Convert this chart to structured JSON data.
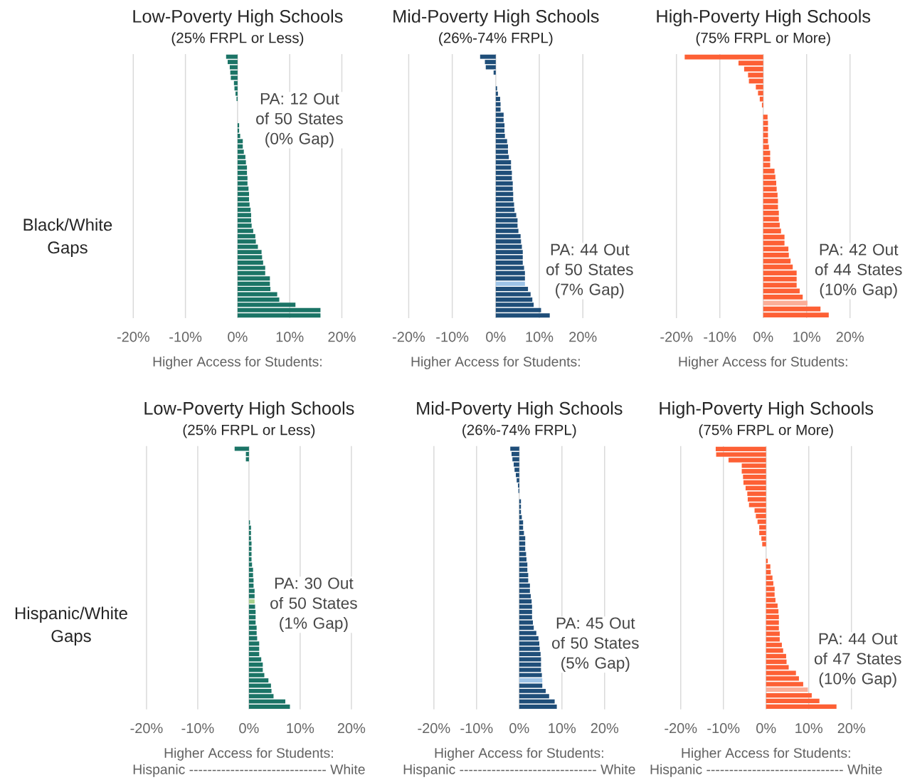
{
  "chart_data": [
    {
      "type": "bar",
      "orientation": "horizontal",
      "title": "Low-Poverty High Schools",
      "subtitle": "(25% FRPL or Less)",
      "xlabel": "Higher Access for Students:",
      "ylabel": "Black/White Gaps",
      "annotations": [
        "PA: 12 Out of 50 States (0% Gap)"
      ],
      "grid": "x",
      "xlim": [
        -20,
        20
      ],
      "xticks": [
        {
          "value": -20,
          "label": "-20%"
        },
        {
          "value": -10,
          "label": "-10%"
        },
        {
          "value": 0,
          "label": "0%"
        },
        {
          "value": 10,
          "label": "10%"
        },
        {
          "value": 20,
          "label": "20%"
        }
      ],
      "categories": [
        null,
        null,
        null,
        null,
        null,
        null,
        null,
        null,
        null,
        null,
        null,
        null,
        null,
        null,
        null,
        null,
        null,
        null,
        null,
        null,
        null,
        null,
        null,
        null,
        null,
        null,
        null,
        null,
        null,
        null,
        null,
        null,
        null,
        null,
        null,
        null,
        null,
        null,
        null,
        null,
        null,
        null,
        null,
        null,
        null,
        null,
        null,
        null,
        null,
        null
      ],
      "values": [
        -2.2,
        -1.9,
        -1.5,
        -1.4,
        -1.3,
        -0.7,
        -0.6,
        -0.4,
        -0.2,
        0,
        0,
        0,
        0,
        0.3,
        0.3,
        0.5,
        1.0,
        1.0,
        1.2,
        1.5,
        1.6,
        1.8,
        1.8,
        1.9,
        1.9,
        2.1,
        2.2,
        2.2,
        2.3,
        2.5,
        2.6,
        2.6,
        2.7,
        3.0,
        3.4,
        3.5,
        3.9,
        4.6,
        4.7,
        4.9,
        5.3,
        5.3,
        6.2,
        6.2,
        6.3,
        7.6,
        8.0,
        11.1,
        15.9,
        15.9
      ],
      "color": "#1b7466"
    },
    {
      "type": "bar",
      "orientation": "horizontal",
      "title": "Mid-Poverty High Schools",
      "subtitle": "(26%-74% FRPL)",
      "xlabel": "Higher Access for Students:",
      "annotations": [
        "PA: 44 Out of 50 States (7% Gap)"
      ],
      "grid": "x",
      "xlim": [
        -20,
        20
      ],
      "xticks": [
        {
          "value": -20,
          "label": "-20%"
        },
        {
          "value": -10,
          "label": "-10%"
        },
        {
          "value": 0,
          "label": "0%"
        },
        {
          "value": 10,
          "label": "10%"
        },
        {
          "value": 20,
          "label": "20%"
        }
      ],
      "categories": [
        null,
        null,
        null,
        null,
        null,
        null,
        null,
        null,
        null,
        null,
        null,
        null,
        null,
        null,
        null,
        null,
        null,
        null,
        null,
        null,
        null,
        null,
        null,
        null,
        null,
        null,
        null,
        null,
        null,
        null,
        null,
        null,
        null,
        null,
        null,
        null,
        null,
        null,
        null,
        null,
        null,
        null,
        null,
        null,
        null,
        null,
        null,
        null,
        null,
        null
      ],
      "values": [
        -3.6,
        -2.5,
        -2.3,
        -0.5,
        0,
        0,
        0.3,
        0.5,
        1.0,
        1.1,
        1.1,
        1.8,
        1.8,
        2.0,
        2.0,
        2.1,
        2.6,
        2.8,
        2.8,
        3.0,
        3.5,
        3.5,
        3.7,
        3.7,
        3.9,
        3.9,
        4.0,
        4.0,
        4.2,
        4.3,
        4.7,
        5.0,
        5.0,
        5.2,
        5.7,
        5.8,
        6.0,
        6.2,
        6.2,
        6.2,
        6.5,
        6.7,
        6.7,
        6.7,
        7.4,
        8.0,
        8.4,
        8.7,
        10.4,
        12.4
      ],
      "colors": [
        "#1f4e79",
        "#1f4e79",
        "#1f4e79",
        "#1f4e79",
        "#1f4e79",
        "#1f4e79",
        "#1f4e79",
        "#1f4e79",
        "#1f4e79",
        "#1f4e79",
        "#1f4e79",
        "#1f4e79",
        "#1f4e79",
        "#1f4e79",
        "#1f4e79",
        "#1f4e79",
        "#1f4e79",
        "#1f4e79",
        "#1f4e79",
        "#1f4e79",
        "#1f4e79",
        "#1f4e79",
        "#1f4e79",
        "#1f4e79",
        "#1f4e79",
        "#1f4e79",
        "#1f4e79",
        "#1f4e79",
        "#1f4e79",
        "#1f4e79",
        "#1f4e79",
        "#1f4e79",
        "#1f4e79",
        "#1f4e79",
        "#1f4e79",
        "#1f4e79",
        "#1f4e79",
        "#1f4e79",
        "#1f4e79",
        "#1f4e79",
        "#1f4e79",
        "#1f4e79",
        "#1f4e79",
        "#9dc3e6",
        "#1f4e79",
        "#1f4e79",
        "#1f4e79",
        "#1f4e79",
        "#1f4e79",
        "#1f4e79"
      ]
    },
    {
      "type": "bar",
      "orientation": "horizontal",
      "title": "High-Poverty High Schools",
      "subtitle": "(75% FRPL or More)",
      "xlabel": "Higher Access for Students:",
      "annotations": [
        "PA: 42 Out of 44 States (10% Gap)"
      ],
      "grid": "x",
      "xlim": [
        -20,
        20
      ],
      "xticks": [
        {
          "value": -20,
          "label": "-20%"
        },
        {
          "value": -10,
          "label": "-10%"
        },
        {
          "value": 0,
          "label": "0%"
        },
        {
          "value": 10,
          "label": "10%"
        },
        {
          "value": 20,
          "label": "20%"
        }
      ],
      "categories": [
        null,
        null,
        null,
        null,
        null,
        null,
        null,
        null,
        null,
        null,
        null,
        null,
        null,
        null,
        null,
        null,
        null,
        null,
        null,
        null,
        null,
        null,
        null,
        null,
        null,
        null,
        null,
        null,
        null,
        null,
        null,
        null,
        null,
        null,
        null,
        null,
        null,
        null,
        null,
        null,
        null,
        null,
        null,
        null
      ],
      "values": [
        -18.1,
        -5.7,
        -4.4,
        -3.5,
        -3.3,
        -1.7,
        -1.2,
        -0.8,
        -0.3,
        0,
        1.0,
        1.1,
        1.1,
        1.1,
        1.1,
        1.3,
        1.6,
        1.6,
        1.6,
        2.6,
        2.8,
        3.0,
        3.1,
        3.3,
        3.4,
        3.4,
        3.6,
        3.6,
        3.8,
        4.1,
        4.9,
        4.9,
        5.8,
        5.9,
        6.3,
        6.8,
        7.7,
        7.7,
        7.7,
        8.4,
        9.1,
        10.2,
        13.2,
        15.1
      ],
      "colors": [
        "#fd6035",
        "#fd6035",
        "#fd6035",
        "#fd6035",
        "#fd6035",
        "#fd6035",
        "#fd6035",
        "#fd6035",
        "#fd6035",
        "#fd6035",
        "#fd6035",
        "#fd6035",
        "#fd6035",
        "#fd6035",
        "#fd6035",
        "#fd6035",
        "#fd6035",
        "#fd6035",
        "#fd6035",
        "#fd6035",
        "#fd6035",
        "#fd6035",
        "#fd6035",
        "#fd6035",
        "#fd6035",
        "#fd6035",
        "#fd6035",
        "#fd6035",
        "#fd6035",
        "#fd6035",
        "#fd6035",
        "#fd6035",
        "#fd6035",
        "#fd6035",
        "#fd6035",
        "#fd6035",
        "#fd6035",
        "#fd6035",
        "#fd6035",
        "#fd6035",
        "#fd6035",
        "#fbae98",
        "#fd6035",
        "#fd6035"
      ]
    },
    {
      "type": "bar",
      "orientation": "horizontal",
      "title": "Low-Poverty High Schools",
      "subtitle": "(25% FRPL or Less)",
      "xlabel": "Higher Access for Students:",
      "ylabel": "Hispanic/White Gaps",
      "annotations": [
        "PA: 30 Out of 50 States (1% Gap)",
        "Hispanic ------------------------------ White"
      ],
      "grid": "x",
      "xlim": [
        -20,
        20
      ],
      "xticks": [
        {
          "value": -20,
          "label": "-20%"
        },
        {
          "value": -10,
          "label": "-10%"
        },
        {
          "value": 0,
          "label": "0%"
        },
        {
          "value": 10,
          "label": "10%"
        },
        {
          "value": 20,
          "label": "20%"
        }
      ],
      "categories": [
        null,
        null,
        null,
        null,
        null,
        null,
        null,
        null,
        null,
        null,
        null,
        null,
        null,
        null,
        null,
        null,
        null,
        null,
        null,
        null,
        null,
        null,
        null,
        null,
        null,
        null,
        null,
        null,
        null,
        null,
        null,
        null,
        null,
        null,
        null,
        null,
        null,
        null,
        null,
        null,
        null,
        null,
        null,
        null,
        null,
        null,
        null,
        null,
        null,
        null
      ],
      "values": [
        -2.8,
        -0.6,
        -0.6,
        0,
        0,
        0,
        0,
        0,
        0,
        0,
        0,
        0,
        0,
        0,
        0.2,
        0.4,
        0.4,
        0.4,
        0.5,
        0.5,
        0.5,
        0.5,
        0.6,
        0.8,
        0.8,
        0.9,
        0.9,
        1.1,
        1.1,
        1.1,
        1.2,
        1.3,
        1.3,
        1.3,
        1.5,
        1.5,
        1.6,
        2.0,
        2.0,
        2.0,
        2.4,
        2.7,
        2.7,
        3.0,
        3.8,
        4.3,
        4.4,
        4.8,
        7.1,
        8.0
      ],
      "colors": [
        "#1b7466",
        "#1b7466",
        "#1b7466",
        "#1b7466",
        "#1b7466",
        "#1b7466",
        "#1b7466",
        "#1b7466",
        "#1b7466",
        "#1b7466",
        "#1b7466",
        "#1b7466",
        "#1b7466",
        "#1b7466",
        "#1b7466",
        "#1b7466",
        "#1b7466",
        "#1b7466",
        "#1b7466",
        "#1b7466",
        "#1b7466",
        "#1b7466",
        "#1b7466",
        "#1b7466",
        "#1b7466",
        "#1b7466",
        "#1b7466",
        "#1b7466",
        "#1b7466",
        "#a9d18e",
        "#1b7466",
        "#1b7466",
        "#1b7466",
        "#1b7466",
        "#1b7466",
        "#1b7466",
        "#1b7466",
        "#1b7466",
        "#1b7466",
        "#1b7466",
        "#1b7466",
        "#1b7466",
        "#1b7466",
        "#1b7466",
        "#1b7466",
        "#1b7466",
        "#1b7466",
        "#1b7466",
        "#1b7466",
        "#1b7466"
      ]
    },
    {
      "type": "bar",
      "orientation": "horizontal",
      "title": "Mid-Poverty High Schools",
      "subtitle": "(26%-74% FRPL)",
      "xlabel": "Higher Access for Students:",
      "annotations": [
        "PA: 45 Out of 50 States (5% Gap)",
        "Hispanic ------------------------------ White"
      ],
      "grid": "x",
      "xlim": [
        -20,
        20
      ],
      "xticks": [
        {
          "value": -20,
          "label": "-20%"
        },
        {
          "value": -10,
          "label": "-10%"
        },
        {
          "value": 0,
          "label": "0%"
        },
        {
          "value": 10,
          "label": "10%"
        },
        {
          "value": 20,
          "label": "20%"
        }
      ],
      "categories": [
        null,
        null,
        null,
        null,
        null,
        null,
        null,
        null,
        null,
        null,
        null,
        null,
        null,
        null,
        null,
        null,
        null,
        null,
        null,
        null,
        null,
        null,
        null,
        null,
        null,
        null,
        null,
        null,
        null,
        null,
        null,
        null,
        null,
        null,
        null,
        null,
        null,
        null,
        null,
        null,
        null,
        null,
        null,
        null,
        null,
        null,
        null,
        null,
        null,
        null
      ],
      "values": [
        -2.1,
        -1.8,
        -1.6,
        -1.3,
        -1.1,
        -0.8,
        -0.6,
        -0.3,
        -0.2,
        0,
        0.4,
        0.4,
        0.4,
        0.6,
        0.9,
        0.9,
        1.1,
        1.4,
        1.4,
        1.4,
        1.6,
        1.7,
        1.9,
        1.9,
        2.1,
        2.1,
        2.5,
        2.5,
        2.7,
        2.9,
        3.0,
        3.0,
        3.0,
        3.2,
        3.4,
        4.0,
        4.5,
        4.7,
        4.8,
        5.0,
        5.1,
        5.1,
        5.1,
        5.3,
        5.4,
        5.4,
        6.2,
        7.0,
        8.3,
        8.8
      ],
      "colors": [
        "#1f4e79",
        "#1f4e79",
        "#1f4e79",
        "#1f4e79",
        "#1f4e79",
        "#1f4e79",
        "#1f4e79",
        "#1f4e79",
        "#1f4e79",
        "#1f4e79",
        "#1f4e79",
        "#1f4e79",
        "#1f4e79",
        "#1f4e79",
        "#1f4e79",
        "#1f4e79",
        "#1f4e79",
        "#1f4e79",
        "#1f4e79",
        "#1f4e79",
        "#1f4e79",
        "#1f4e79",
        "#1f4e79",
        "#1f4e79",
        "#1f4e79",
        "#1f4e79",
        "#1f4e79",
        "#1f4e79",
        "#1f4e79",
        "#1f4e79",
        "#1f4e79",
        "#1f4e79",
        "#1f4e79",
        "#1f4e79",
        "#1f4e79",
        "#1f4e79",
        "#1f4e79",
        "#1f4e79",
        "#1f4e79",
        "#1f4e79",
        "#1f4e79",
        "#1f4e79",
        "#1f4e79",
        "#1f4e79",
        "#9dc3e6",
        "#1f4e79",
        "#1f4e79",
        "#1f4e79",
        "#1f4e79",
        "#1f4e79"
      ]
    },
    {
      "type": "bar",
      "orientation": "horizontal",
      "title": "High-Poverty High Schools",
      "subtitle": "(75% FRPL or More)",
      "xlabel": "Higher Access for Students:",
      "annotations": [
        "PA: 44 Out of 47 States (10% Gap)",
        "Hispanic ------------------------------ White"
      ],
      "grid": "x",
      "xlim": [
        -20,
        20
      ],
      "xticks": [
        {
          "value": -20,
          "label": "-20%"
        },
        {
          "value": -10,
          "label": "-10%"
        },
        {
          "value": 0,
          "label": "0%"
        },
        {
          "value": 10,
          "label": "10%"
        },
        {
          "value": 20,
          "label": "20%"
        }
      ],
      "categories": [
        null,
        null,
        null,
        null,
        null,
        null,
        null,
        null,
        null,
        null,
        null,
        null,
        null,
        null,
        null,
        null,
        null,
        null,
        null,
        null,
        null,
        null,
        null,
        null,
        null,
        null,
        null,
        null,
        null,
        null,
        null,
        null,
        null,
        null,
        null,
        null,
        null,
        null,
        null,
        null,
        null,
        null,
        null,
        null,
        null,
        null,
        null
      ],
      "values": [
        -11.8,
        -11.7,
        -8.8,
        -5.7,
        -5.7,
        -5.4,
        -5.3,
        -4.8,
        -4.4,
        -4.3,
        -4.0,
        -2.7,
        -2.4,
        -2.0,
        -1.6,
        -1.6,
        -1.1,
        -0.9,
        0,
        0,
        0.4,
        1.0,
        1.1,
        1.5,
        1.7,
        2.0,
        2.0,
        2.2,
        2.7,
        2.9,
        3.0,
        3.0,
        3.0,
        3.2,
        3.2,
        3.7,
        4.0,
        4.7,
        4.8,
        5.3,
        7.0,
        7.7,
        8.7,
        9.8,
        10.7,
        12.5,
        16.5
      ],
      "colors": [
        "#fd6035",
        "#fd6035",
        "#fd6035",
        "#fd6035",
        "#fd6035",
        "#fd6035",
        "#fd6035",
        "#fd6035",
        "#fd6035",
        "#fd6035",
        "#fd6035",
        "#fd6035",
        "#fd6035",
        "#fd6035",
        "#fd6035",
        "#fd6035",
        "#fd6035",
        "#fd6035",
        "#fd6035",
        "#fd6035",
        "#fd6035",
        "#fd6035",
        "#fd6035",
        "#fd6035",
        "#fd6035",
        "#fd6035",
        "#fd6035",
        "#fd6035",
        "#fd6035",
        "#fd6035",
        "#fd6035",
        "#fd6035",
        "#fd6035",
        "#fd6035",
        "#fd6035",
        "#fd6035",
        "#fd6035",
        "#fd6035",
        "#fd6035",
        "#fd6035",
        "#fd6035",
        "#fd6035",
        "#fd6035",
        "#fbae98",
        "#fd6035",
        "#fd6035",
        "#fd6035"
      ]
    }
  ]
}
